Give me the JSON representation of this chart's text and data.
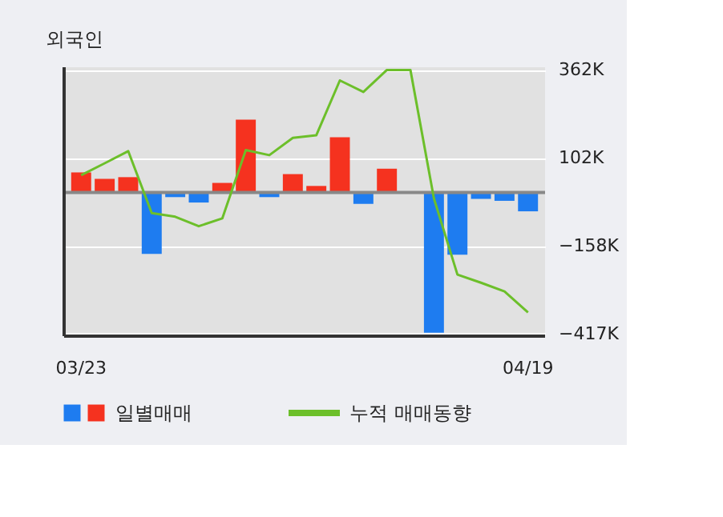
{
  "chart_data": {
    "type": "bar",
    "title": "외국인",
    "categories": [
      "03/23",
      null,
      null,
      null,
      null,
      null,
      null,
      null,
      null,
      null,
      null,
      null,
      null,
      null,
      null,
      null,
      null,
      null,
      null,
      "04/19"
    ],
    "series": [
      {
        "name": "일별매매",
        "values": [
          59,
          40,
          45,
          -182,
          -14,
          -30,
          28,
          215,
          -14,
          54,
          19,
          163,
          -34,
          70,
          0,
          -415,
          -184,
          -19,
          -25,
          -56
        ],
        "colors": [
          "#f5321f",
          "#f5321f",
          "#f5321f",
          "#1e7cf0",
          "#1e7cf0",
          "#1e7cf0",
          "#f5321f",
          "#f5321f",
          "#1e7cf0",
          "#f5321f",
          "#f5321f",
          "#f5321f",
          "#1e7cf0",
          "#f5321f",
          "#f5321f",
          "#1e7cf0",
          "#1e7cf0",
          "#1e7cf0",
          "#1e7cf0",
          "#1e7cf0"
        ]
      },
      {
        "name": "누적 매매동향",
        "type": "line",
        "color": "#6cbf2a",
        "values": [
          51,
          86,
          122,
          -61,
          -72,
          -100,
          -77,
          125,
          110,
          161,
          169,
          331,
          297,
          362,
          362,
          -18,
          -243,
          -267,
          -293,
          -355
        ]
      }
    ],
    "ylim": [
      -425,
      370
    ],
    "yticks": [
      {
        "value": 362,
        "label": "362K"
      },
      {
        "value": 102,
        "label": "102K"
      },
      {
        "value": -158,
        "label": "−158K"
      },
      {
        "value": -417,
        "label": "−417K"
      }
    ],
    "grid": "y",
    "legend": "bottom"
  }
}
